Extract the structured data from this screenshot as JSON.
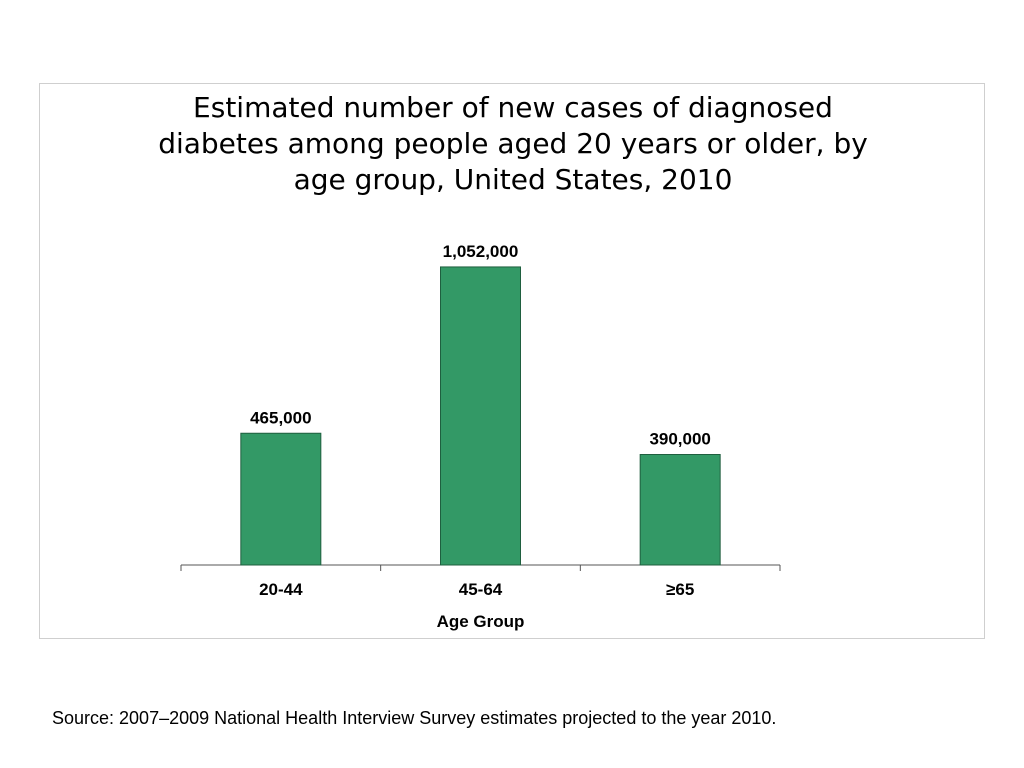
{
  "chart_data": {
    "type": "bar",
    "title_lines": [
      "Estimated number of new cases of diagnosed",
      "diabetes among people aged 20 years or older, by",
      "age group, United States, 2010"
    ],
    "categories": [
      "20-44",
      "45-64",
      "≥65"
    ],
    "values": [
      465000,
      1052000,
      390000
    ],
    "value_labels": [
      "465,000",
      "1,052,000",
      "390,000"
    ],
    "xlabel": "Age Group",
    "ylabel": "",
    "ylim": [
      0,
      1200000
    ],
    "bar_color": "#339966",
    "bar_edge_color": "#1f5f3f",
    "grid": false,
    "legend": "none"
  },
  "source": "Source: 2007–2009 National Health Interview Survey estimates projected to the year 2010."
}
